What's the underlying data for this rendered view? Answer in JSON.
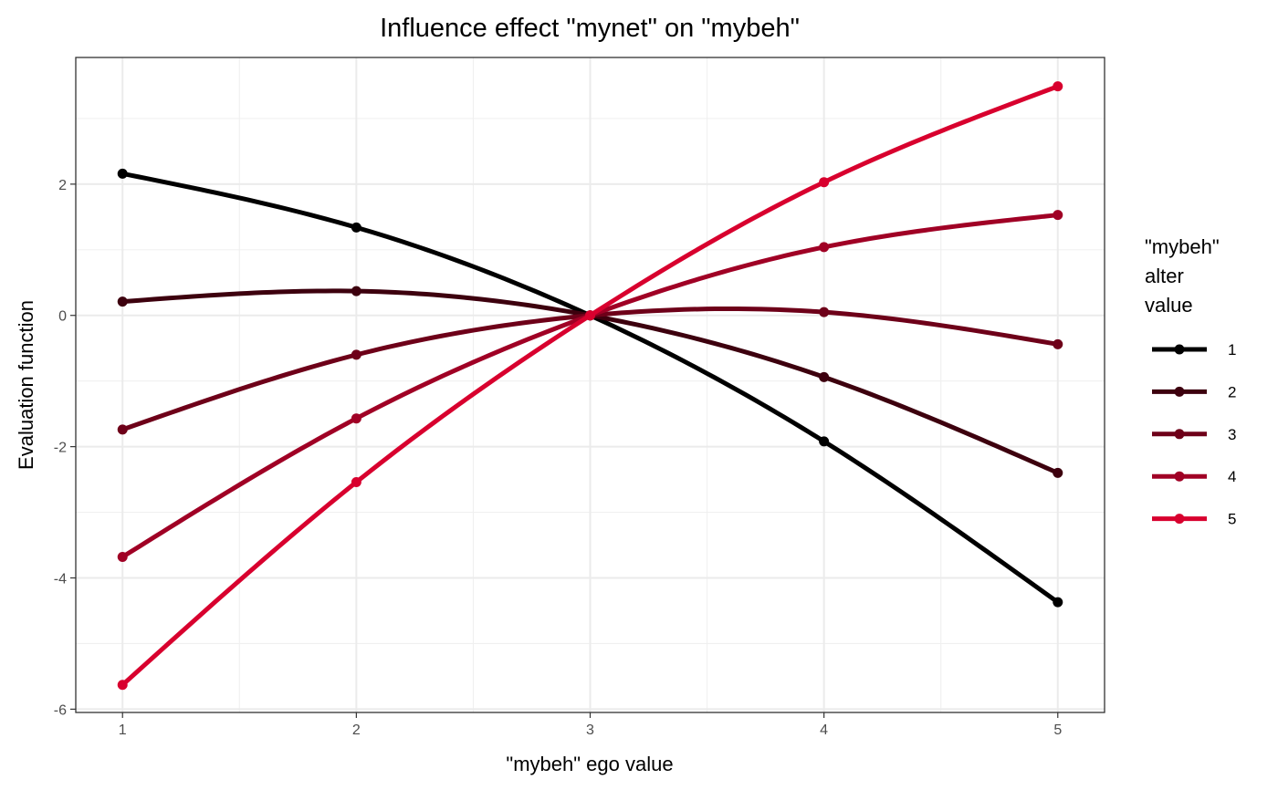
{
  "chart_data": {
    "type": "line",
    "title": "Influence effect \"mynet\" on \"mybeh\"",
    "xlabel": "\"mybeh\" ego value",
    "ylabel": "Evaluation function",
    "x": [
      1,
      2,
      3,
      4,
      5
    ],
    "xlim": [
      0.8,
      5.2
    ],
    "ylim": [
      -6.05,
      3.93
    ],
    "xticks": [
      "1",
      "2",
      "3",
      "4",
      "5"
    ],
    "yticks": [
      {
        "value": -6,
        "label": "-6"
      },
      {
        "value": -4,
        "label": "-4"
      },
      {
        "value": -2,
        "label": "-2"
      },
      {
        "value": 0,
        "label": "0"
      },
      {
        "value": 2,
        "label": "2"
      }
    ],
    "grid": true,
    "legend": {
      "title_lines": [
        "\"mybeh\"",
        "alter",
        "value"
      ],
      "position": "right"
    },
    "series": [
      {
        "name": "1",
        "color": "#000000",
        "values": [
          2.16,
          1.34,
          0.0,
          -1.92,
          -4.37
        ]
      },
      {
        "name": "2",
        "color": "#3d000e",
        "values": [
          0.21,
          0.37,
          0.0,
          -0.94,
          -2.4
        ]
      },
      {
        "name": "3",
        "color": "#6e0019",
        "values": [
          -1.74,
          -0.6,
          0.0,
          0.05,
          -0.44
        ]
      },
      {
        "name": "4",
        "color": "#a00025",
        "values": [
          -3.68,
          -1.57,
          0.0,
          1.04,
          1.53
        ]
      },
      {
        "name": "5",
        "color": "#d8002e",
        "values": [
          -5.63,
          -2.54,
          0.0,
          2.03,
          3.49
        ]
      }
    ]
  }
}
